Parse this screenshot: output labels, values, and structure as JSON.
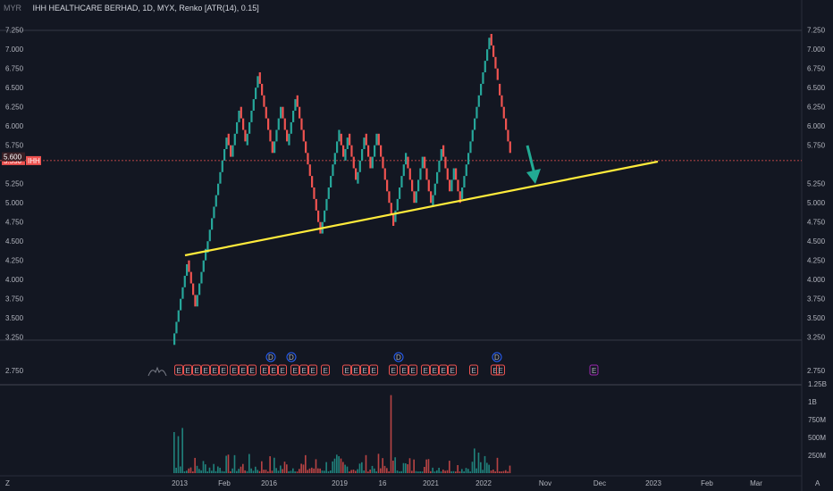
{
  "header": {
    "currency": "MYR",
    "title": "IHH HEALTHCARE BERHAD, 1D, MYX, Renko [ATR(14), 0.15]"
  },
  "price_axis": {
    "ticks": [
      "7.250",
      "7.000",
      "6.750",
      "6.500",
      "6.250",
      "6.000",
      "5.750",
      "5.250",
      "5.000",
      "4.750",
      "4.500",
      "4.250",
      "4.000",
      "3.750",
      "3.500",
      "3.250",
      "2.750"
    ],
    "current_price": "5.550",
    "current_symbol": "IHH",
    "last_label": "5.600"
  },
  "volume_axis": {
    "ticks": [
      "1.25B",
      "1B",
      "750M",
      "500M",
      "250M"
    ]
  },
  "time_axis": {
    "labels": [
      "2013",
      "Feb",
      "2016",
      "2019",
      "16",
      "2021",
      "2022",
      "Nov",
      "Dec",
      "2023",
      "Feb",
      "Mar"
    ]
  },
  "corner_left": "Z",
  "corner_right": "A",
  "events": {
    "earnings_letter": "E",
    "dividend_letter": "D"
  },
  "colors": {
    "background": "#131722",
    "up": "#26a69a",
    "down": "#ef5350",
    "trendline": "#ffeb3b",
    "arrow": "#22ab94",
    "grid": "#2a2e39",
    "dividend": "#2962ff",
    "future_earnings": "#9c27b0"
  },
  "chart_data": {
    "type": "renko",
    "box_size": 0.15,
    "y_range": [
      2.75,
      7.35
    ],
    "price_path": [
      3.15,
      4.25,
      3.65,
      4.35,
      5.9,
      5.6,
      6.25,
      5.75,
      6.7,
      5.65,
      6.25,
      5.75,
      6.4,
      5.5,
      4.6,
      5.9,
      5.55,
      5.9,
      5.25,
      5.9,
      5.45,
      5.9,
      4.75,
      5.6,
      5.0,
      5.6,
      4.95,
      5.75,
      5.15,
      5.45,
      5.05,
      6.1,
      6.55,
      7.2,
      6.55,
      5.6
    ],
    "last_price": 5.55,
    "volume_unit": "shares",
    "volume_peak": 1150000000,
    "trendline": {
      "from": {
        "x": "2013",
        "y": 4.25
      },
      "to": {
        "x": "Jan 2023",
        "y": 5.5
      }
    },
    "annotations": [
      "trendline",
      "down-arrow"
    ]
  }
}
